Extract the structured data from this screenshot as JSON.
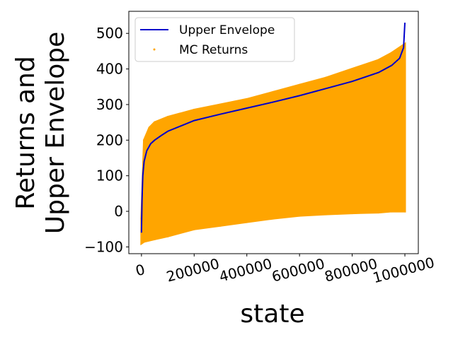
{
  "chart_data": {
    "type": "line_scatter",
    "xlabel": "state",
    "ylabel": [
      "Returns and",
      "Upper Envelope"
    ],
    "xlim": [
      -48000,
      1051000
    ],
    "ylim": [
      -119,
      562
    ],
    "xticks": [
      0,
      200000,
      400000,
      600000,
      800000,
      1000000
    ],
    "yticks": [
      {
        "value": -100,
        "label": "−100"
      },
      0,
      100,
      200,
      300,
      400,
      500
    ],
    "legend": "upper left",
    "series": [
      {
        "name": "Upper Envelope",
        "type": "line",
        "color": "#0000cc",
        "x": [
          0,
          2000,
          5000,
          10000,
          20000,
          35000,
          50000,
          75000,
          100000,
          150000,
          200000,
          300000,
          400000,
          500000,
          600000,
          700000,
          800000,
          900000,
          950000,
          980000,
          995000,
          1000000
        ],
        "values": [
          -60,
          30,
          100,
          140,
          170,
          190,
          200,
          213,
          225,
          240,
          255,
          273,
          290,
          307,
          325,
          345,
          365,
          390,
          410,
          430,
          460,
          530
        ]
      },
      {
        "name": "MC Returns",
        "type": "scatter",
        "color": "#ffa500",
        "x": [
          0,
          10000,
          30000,
          50000,
          100000,
          200000,
          300000,
          400000,
          500000,
          600000,
          700000,
          800000,
          900000,
          950000,
          1000000,
          1000000,
          950000,
          900000,
          800000,
          700000,
          600000,
          500000,
          400000,
          300000,
          200000,
          100000,
          50000,
          10000,
          0
        ],
        "values": [
          -20,
          200,
          235,
          250,
          265,
          285,
          300,
          315,
          335,
          355,
          375,
          400,
          425,
          445,
          470,
          0,
          0,
          -3,
          -5,
          -8,
          -12,
          -20,
          -30,
          -40,
          -50,
          -70,
          -78,
          -85,
          -90
        ]
      }
    ]
  }
}
